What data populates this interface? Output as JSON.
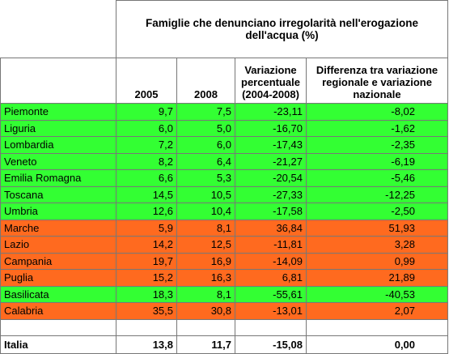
{
  "header": {
    "title": "Famiglie che denunciano irregolarità nell'erogazione dell'acqua (%)",
    "columns": [
      "2005",
      "2008",
      "Variazione percentuale (2004-2008)",
      "Differenza tra variazione regionale e variazione nazionale"
    ]
  },
  "rows": [
    [
      "Piemonte",
      "9,7",
      "7,5",
      "-23,11",
      "-8,02"
    ],
    [
      "Liguria",
      "6,0",
      "5,0",
      "-16,70",
      "-1,62"
    ],
    [
      "Lombardia",
      "7,2",
      "6,0",
      "-17,43",
      "-2,35"
    ],
    [
      "Veneto",
      "8,2",
      "6,4",
      "-21,27",
      "-6,19"
    ],
    [
      "Emilia Romagna",
      "6,6",
      "5,3",
      "-20,54",
      "-5,46"
    ],
    [
      "Toscana",
      "14,5",
      "10,5",
      "-27,33",
      "-12,25"
    ],
    [
      "Umbria",
      "12,6",
      "10,4",
      "-17,58",
      "-2,50"
    ],
    [
      "Marche",
      "5,9",
      "8,1",
      "36,84",
      "51,93"
    ],
    [
      "Lazio",
      "14,2",
      "12,5",
      "-11,81",
      "3,28"
    ],
    [
      "Campania",
      "19,7",
      "16,9",
      "-14,09",
      "0,99"
    ],
    [
      "Puglia",
      "15,2",
      "16,3",
      "6,81",
      "21,89"
    ],
    [
      "Basilicata",
      "18,3",
      "8,1",
      "-55,61",
      "-40,53"
    ],
    [
      "Calabria",
      "35,5",
      "30,8",
      "-13,01",
      "2,07"
    ]
  ],
  "total": [
    "Italia",
    "13,8",
    "11,7",
    "-15,08",
    "0,00"
  ]
}
